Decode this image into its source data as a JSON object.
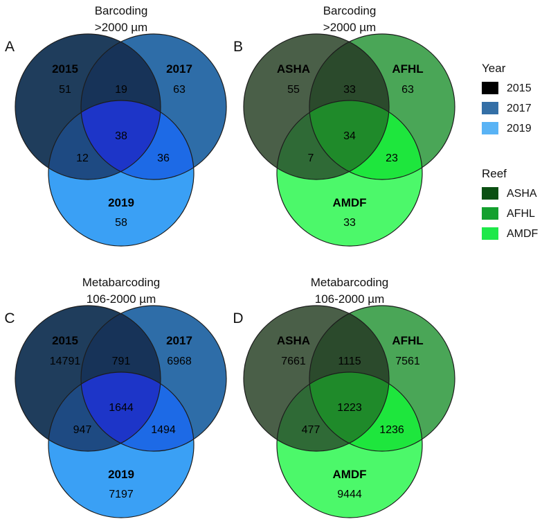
{
  "chart_data": [
    {
      "type": "venn",
      "letter": "A",
      "title": [
        "Barcoding",
        ">2000 µm"
      ],
      "sets": [
        {
          "name": "2015",
          "color": "#1f3d5c",
          "count": "51"
        },
        {
          "name": "2017",
          "color": "#2e6da8",
          "count": "63"
        },
        {
          "name": "2019",
          "color": "#3aa0f5",
          "count": "58"
        }
      ],
      "intersections": {
        "ab": "19",
        "ac": "12",
        "bc": "36",
        "abc": "38"
      },
      "colors": {
        "ab": "#173358",
        "ac": "#1e4a82",
        "bc": "#1d6ae6",
        "abc": "#1d35c8"
      }
    },
    {
      "type": "venn",
      "letter": "B",
      "title": [
        "Barcoding",
        ">2000 µm"
      ],
      "sets": [
        {
          "name": "ASHA",
          "color": "#4a5f48",
          "count": "55"
        },
        {
          "name": "AFHL",
          "color": "#4aa657",
          "count": "63"
        },
        {
          "name": "AMDF",
          "color": "#4cf86a",
          "count": "33"
        }
      ],
      "intersections": {
        "ab": "33",
        "ac": "7",
        "bc": "23",
        "abc": "34"
      },
      "colors": {
        "ab": "#2b4a2c",
        "ac": "#2f6a36",
        "bc": "#1ee63d",
        "abc": "#1f8a2a"
      }
    },
    {
      "type": "venn",
      "letter": "C",
      "title": [
        "Metabarcoding",
        "106-2000 µm"
      ],
      "sets": [
        {
          "name": "2015",
          "color": "#1f3d5c",
          "count": "14791"
        },
        {
          "name": "2017",
          "color": "#2e6da8",
          "count": "6968"
        },
        {
          "name": "2019",
          "color": "#3aa0f5",
          "count": "7197"
        }
      ],
      "intersections": {
        "ab": "791",
        "ac": "947",
        "bc": "1494",
        "abc": "1644"
      },
      "colors": {
        "ab": "#173358",
        "ac": "#1e4a82",
        "bc": "#1d6ae6",
        "abc": "#1d35c8"
      }
    },
    {
      "type": "venn",
      "letter": "D",
      "title": [
        "Metabarcoding",
        "106-2000 µm"
      ],
      "sets": [
        {
          "name": "ASHA",
          "color": "#4a5f48",
          "count": "7661"
        },
        {
          "name": "AFHL",
          "color": "#4aa657",
          "count": "7561"
        },
        {
          "name": "AMDF",
          "color": "#4cf86a",
          "count": "9444"
        }
      ],
      "intersections": {
        "ab": "1115",
        "ac": "477",
        "bc": "1236",
        "abc": "1223"
      },
      "colors": {
        "ab": "#2b4a2c",
        "ac": "#2f6a36",
        "bc": "#1ee63d",
        "abc": "#1f8a2a"
      }
    }
  ],
  "legends": [
    {
      "title": "Year",
      "items": [
        {
          "label": "2015",
          "color": "#000000"
        },
        {
          "label": "2017",
          "color": "#346fa6"
        },
        {
          "label": "2019",
          "color": "#59b3f5"
        }
      ]
    },
    {
      "title": "Reef",
      "items": [
        {
          "label": "ASHA",
          "color": "#0a4f12"
        },
        {
          "label": "AFHL",
          "color": "#14a02e"
        },
        {
          "label": "AMDF",
          "color": "#1ee84a"
        }
      ]
    }
  ]
}
